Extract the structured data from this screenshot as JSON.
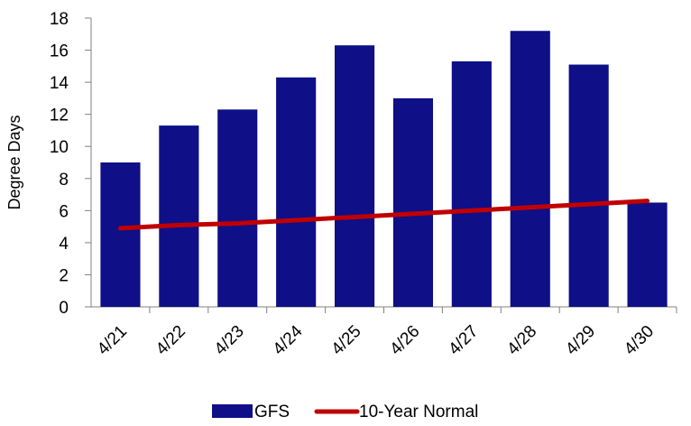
{
  "chart_data": {
    "type": "bar",
    "title": "",
    "xlabel": "",
    "ylabel": "Degree Days",
    "ylim": [
      0,
      18
    ],
    "yticks": [
      0,
      2,
      4,
      6,
      8,
      10,
      12,
      14,
      16,
      18
    ],
    "categories": [
      "4/21",
      "4/22",
      "4/23",
      "4/24",
      "4/25",
      "4/26",
      "4/27",
      "4/28",
      "4/29",
      "4/30"
    ],
    "series": [
      {
        "name": "GFS",
        "type": "bar",
        "color": "#0f0f87",
        "values": [
          9.0,
          11.3,
          12.3,
          14.3,
          16.3,
          13.0,
          15.3,
          17.2,
          15.1,
          6.5
        ]
      },
      {
        "name": "10-Year Normal",
        "type": "line",
        "color": "#c00000",
        "values": [
          4.9,
          5.1,
          5.2,
          5.4,
          5.6,
          5.8,
          6.0,
          6.2,
          6.4,
          6.6
        ]
      }
    ],
    "grid": false,
    "legend_position": "bottom"
  }
}
